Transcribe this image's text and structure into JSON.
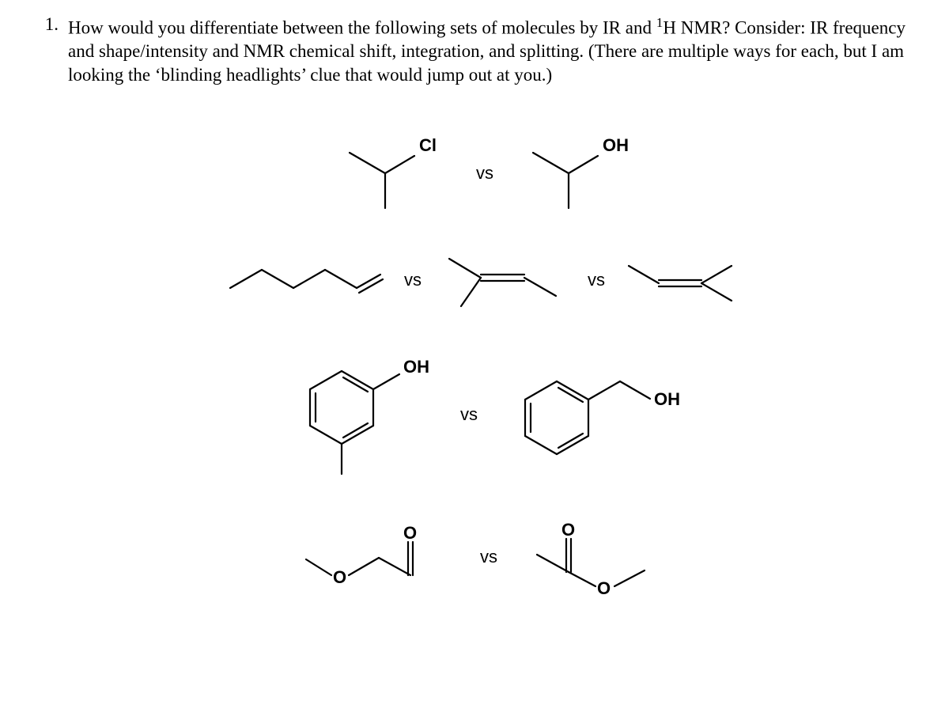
{
  "question": {
    "number": "1.",
    "text_parts": {
      "p1": "How would you differentiate between the following sets of molecules by IR and ",
      "sup": "1",
      "p2": "H NMR? Consider: IR frequency and shape/intensity and NMR chemical shift, integration, and splitting. (There are multiple ways for each, but I am looking the ‘blinding headlights’ clue that would jump out at you.)"
    }
  },
  "labels": {
    "vs": "vs",
    "Cl": "Cl",
    "OH": "OH",
    "O": "O"
  },
  "style": {
    "stroke": "#000000",
    "stroke_width": 2.2,
    "font": "Arial"
  }
}
